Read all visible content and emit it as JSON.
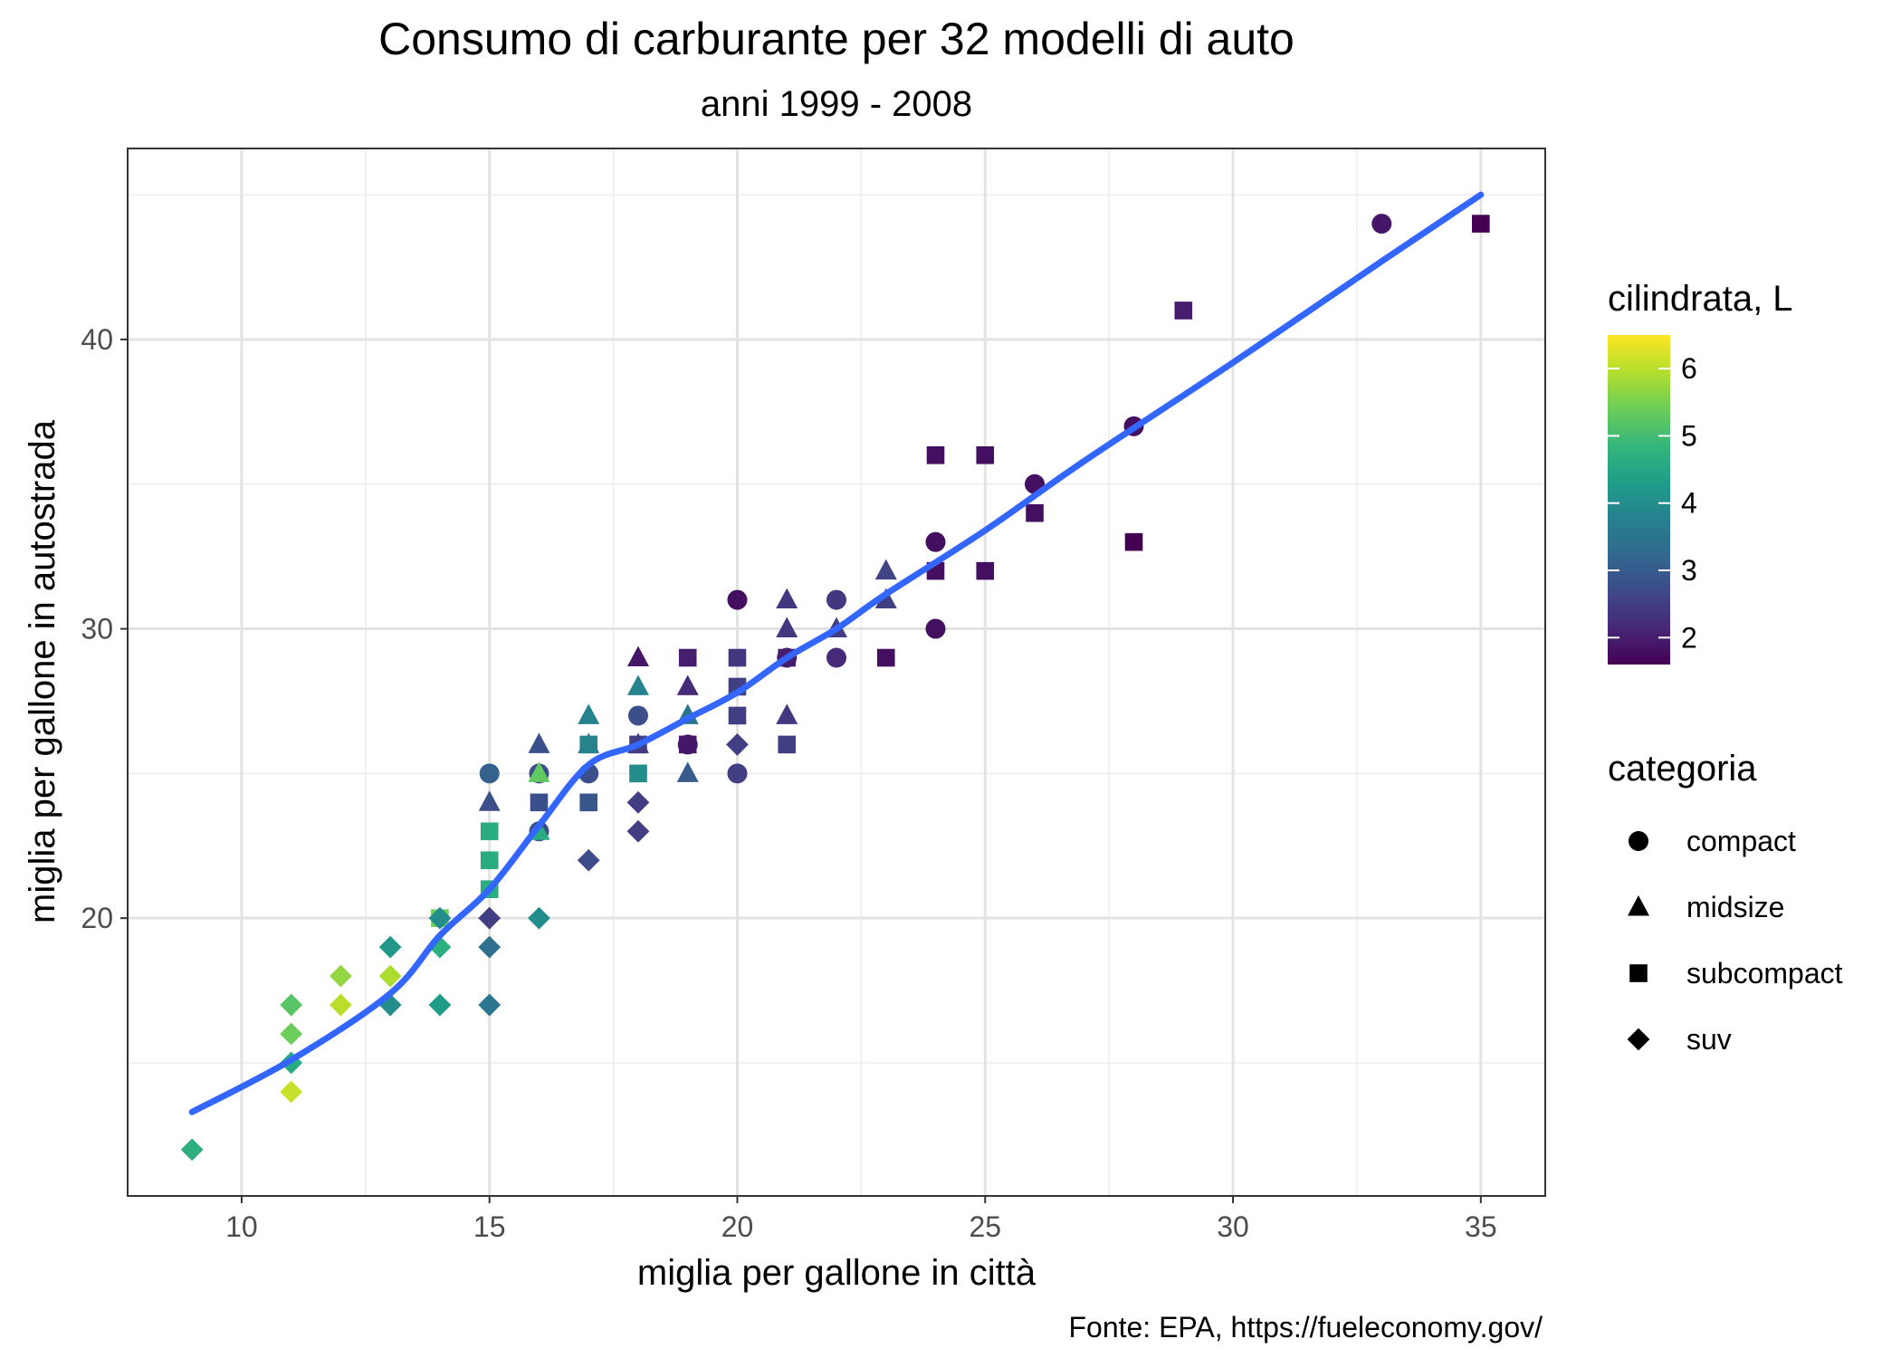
{
  "chart_data": {
    "type": "scatter",
    "title": "Consumo di carburante per 32 modelli di auto",
    "subtitle": "anni 1999 - 2008",
    "xlabel": "miglia per gallone in città",
    "ylabel": "miglia per gallone in autostrada",
    "caption": "Fonte: EPA, https://fueleconomy.gov/",
    "xlim": [
      7.7,
      36.3
    ],
    "ylim": [
      10.4,
      46.6
    ],
    "x_ticks": [
      10,
      15,
      20,
      25,
      30,
      35
    ],
    "y_ticks": [
      20,
      30,
      40
    ],
    "grid": true,
    "legend_position": "right",
    "color_legend": {
      "title": "cilindrata, L",
      "min": 1.6,
      "max": 6.5,
      "ticks": [
        2,
        3,
        4,
        5,
        6
      ],
      "palette": [
        "#440154",
        "#482878",
        "#3E4A89",
        "#31688E",
        "#26828E",
        "#1F9E89",
        "#35B779",
        "#6DCD59",
        "#B4DE2C",
        "#FDE725"
      ]
    },
    "shape_legend": {
      "title": "categoria",
      "items": [
        {
          "label": "compact",
          "shape": "circle"
        },
        {
          "label": "midsize",
          "shape": "triangle"
        },
        {
          "label": "subcompact",
          "shape": "square"
        },
        {
          "label": "suv",
          "shape": "diamond"
        }
      ]
    },
    "smooth_line": {
      "color": "#3366FF",
      "points": [
        [
          9,
          13.3
        ],
        [
          11,
          15.1
        ],
        [
          13,
          17.4
        ],
        [
          14,
          19.4
        ],
        [
          15,
          21.0
        ],
        [
          16,
          23.2
        ],
        [
          17,
          25.3
        ],
        [
          18,
          26.0
        ],
        [
          19,
          26.9
        ],
        [
          20,
          27.8
        ],
        [
          21,
          29.0
        ],
        [
          22,
          30.0
        ],
        [
          23,
          31.2
        ],
        [
          25,
          33.4
        ],
        [
          27,
          35.8
        ],
        [
          30,
          39.2
        ],
        [
          33,
          42.7
        ],
        [
          35,
          45.0
        ]
      ]
    },
    "points": [
      {
        "x": 9,
        "y": 12,
        "class": "suv",
        "displ": 4.7
      },
      {
        "x": 11,
        "y": 17,
        "class": "suv",
        "displ": 5.2
      },
      {
        "x": 11,
        "y": 16,
        "class": "suv",
        "displ": 5.4
      },
      {
        "x": 11,
        "y": 15,
        "class": "suv",
        "displ": 4.6
      },
      {
        "x": 11,
        "y": 14,
        "class": "suv",
        "displ": 6.1
      },
      {
        "x": 12,
        "y": 18,
        "class": "suv",
        "displ": 5.7
      },
      {
        "x": 12,
        "y": 17,
        "class": "suv",
        "displ": 6.0
      },
      {
        "x": 13,
        "y": 19,
        "class": "suv",
        "displ": 4.2
      },
      {
        "x": 13,
        "y": 18,
        "class": "suv",
        "displ": 5.9
      },
      {
        "x": 13,
        "y": 17,
        "class": "suv",
        "displ": 4.0
      },
      {
        "x": 14,
        "y": 20,
        "class": "subcompact",
        "displ": 5.4
      },
      {
        "x": 14,
        "y": 20,
        "class": "suv",
        "displ": 4.0
      },
      {
        "x": 14,
        "y": 19,
        "class": "suv",
        "displ": 4.7
      },
      {
        "x": 14,
        "y": 17,
        "class": "suv",
        "displ": 4.3
      },
      {
        "x": 15,
        "y": 25,
        "class": "compact",
        "displ": 3.1
      },
      {
        "x": 15,
        "y": 24,
        "class": "midsize",
        "displ": 2.8
      },
      {
        "x": 15,
        "y": 23,
        "class": "subcompact",
        "displ": 4.6
      },
      {
        "x": 15,
        "y": 22,
        "class": "subcompact",
        "displ": 4.6
      },
      {
        "x": 15,
        "y": 21,
        "class": "subcompact",
        "displ": 4.6
      },
      {
        "x": 15,
        "y": 20,
        "class": "suv",
        "displ": 2.5
      },
      {
        "x": 15,
        "y": 19,
        "class": "suv",
        "displ": 3.4
      },
      {
        "x": 15,
        "y": 17,
        "class": "suv",
        "displ": 3.5
      },
      {
        "x": 16,
        "y": 26,
        "class": "midsize",
        "displ": 2.8
      },
      {
        "x": 16,
        "y": 25,
        "class": "compact",
        "displ": 2.8
      },
      {
        "x": 16,
        "y": 25,
        "class": "midsize",
        "displ": 5.3
      },
      {
        "x": 16,
        "y": 24,
        "class": "subcompact",
        "displ": 2.8
      },
      {
        "x": 16,
        "y": 23,
        "class": "compact",
        "displ": 2.8
      },
      {
        "x": 16,
        "y": 23,
        "class": "midsize",
        "displ": 4.6
      },
      {
        "x": 16,
        "y": 20,
        "class": "suv",
        "displ": 4.0
      },
      {
        "x": 17,
        "y": 27,
        "class": "midsize",
        "displ": 3.8
      },
      {
        "x": 17,
        "y": 26,
        "class": "midsize",
        "displ": 3.5
      },
      {
        "x": 17,
        "y": 26,
        "class": "subcompact",
        "displ": 3.8
      },
      {
        "x": 17,
        "y": 25,
        "class": "compact",
        "displ": 2.8
      },
      {
        "x": 17,
        "y": 24,
        "class": "subcompact",
        "displ": 2.9
      },
      {
        "x": 17,
        "y": 22,
        "class": "suv",
        "displ": 2.7
      },
      {
        "x": 18,
        "y": 29,
        "class": "midsize",
        "displ": 1.9
      },
      {
        "x": 18,
        "y": 28,
        "class": "midsize",
        "displ": 3.8
      },
      {
        "x": 18,
        "y": 27,
        "class": "compact",
        "displ": 2.8
      },
      {
        "x": 18,
        "y": 26,
        "class": "midsize",
        "displ": 2.5
      },
      {
        "x": 18,
        "y": 26,
        "class": "subcompact",
        "displ": 2.5
      },
      {
        "x": 18,
        "y": 25,
        "class": "subcompact",
        "displ": 4.0
      },
      {
        "x": 18,
        "y": 24,
        "class": "suv",
        "displ": 2.5
      },
      {
        "x": 18,
        "y": 23,
        "class": "suv",
        "displ": 2.5
      },
      {
        "x": 19,
        "y": 29,
        "class": "subcompact",
        "displ": 2.0
      },
      {
        "x": 19,
        "y": 28,
        "class": "midsize",
        "displ": 2.2
      },
      {
        "x": 19,
        "y": 27,
        "class": "midsize",
        "displ": 3.5
      },
      {
        "x": 19,
        "y": 26,
        "class": "compact",
        "displ": 2.0
      },
      {
        "x": 19,
        "y": 26,
        "class": "subcompact",
        "displ": 1.9
      },
      {
        "x": 19,
        "y": 25,
        "class": "midsize",
        "displ": 3.0
      },
      {
        "x": 20,
        "y": 31,
        "class": "compact",
        "displ": 1.8
      },
      {
        "x": 20,
        "y": 29,
        "class": "subcompact",
        "displ": 2.4
      },
      {
        "x": 20,
        "y": 28,
        "class": "subcompact",
        "displ": 2.5
      },
      {
        "x": 20,
        "y": 27,
        "class": "subcompact",
        "displ": 2.5
      },
      {
        "x": 20,
        "y": 26,
        "class": "suv",
        "displ": 2.5
      },
      {
        "x": 20,
        "y": 25,
        "class": "compact",
        "displ": 2.5
      },
      {
        "x": 21,
        "y": 31,
        "class": "midsize",
        "displ": 2.4
      },
      {
        "x": 21,
        "y": 30,
        "class": "midsize",
        "displ": 2.4
      },
      {
        "x": 21,
        "y": 29,
        "class": "compact",
        "displ": 2.0
      },
      {
        "x": 21,
        "y": 29,
        "class": "subcompact",
        "displ": 2.0
      },
      {
        "x": 21,
        "y": 27,
        "class": "midsize",
        "displ": 2.4
      },
      {
        "x": 21,
        "y": 26,
        "class": "subcompact",
        "displ": 2.5
      },
      {
        "x": 22,
        "y": 31,
        "class": "compact",
        "displ": 2.4
      },
      {
        "x": 22,
        "y": 30,
        "class": "midsize",
        "displ": 2.5
      },
      {
        "x": 22,
        "y": 29,
        "class": "compact",
        "displ": 2.2
      },
      {
        "x": 23,
        "y": 32,
        "class": "midsize",
        "displ": 2.6
      },
      {
        "x": 23,
        "y": 31,
        "class": "midsize",
        "displ": 2.5
      },
      {
        "x": 23,
        "y": 29,
        "class": "subcompact",
        "displ": 1.8
      },
      {
        "x": 24,
        "y": 36,
        "class": "subcompact",
        "displ": 1.8
      },
      {
        "x": 24,
        "y": 33,
        "class": "compact",
        "displ": 1.8
      },
      {
        "x": 24,
        "y": 32,
        "class": "subcompact",
        "displ": 1.8
      },
      {
        "x": 24,
        "y": 30,
        "class": "compact",
        "displ": 1.8
      },
      {
        "x": 25,
        "y": 36,
        "class": "subcompact",
        "displ": 1.8
      },
      {
        "x": 25,
        "y": 32,
        "class": "subcompact",
        "displ": 1.8
      },
      {
        "x": 26,
        "y": 35,
        "class": "compact",
        "displ": 1.8
      },
      {
        "x": 26,
        "y": 34,
        "class": "subcompact",
        "displ": 1.8
      },
      {
        "x": 28,
        "y": 37,
        "class": "compact",
        "displ": 1.8
      },
      {
        "x": 28,
        "y": 33,
        "class": "subcompact",
        "displ": 1.6
      },
      {
        "x": 29,
        "y": 41,
        "class": "subcompact",
        "displ": 2.0
      },
      {
        "x": 33,
        "y": 44,
        "class": "compact",
        "displ": 1.9
      },
      {
        "x": 35,
        "y": 44,
        "class": "subcompact",
        "displ": 1.6
      }
    ]
  }
}
